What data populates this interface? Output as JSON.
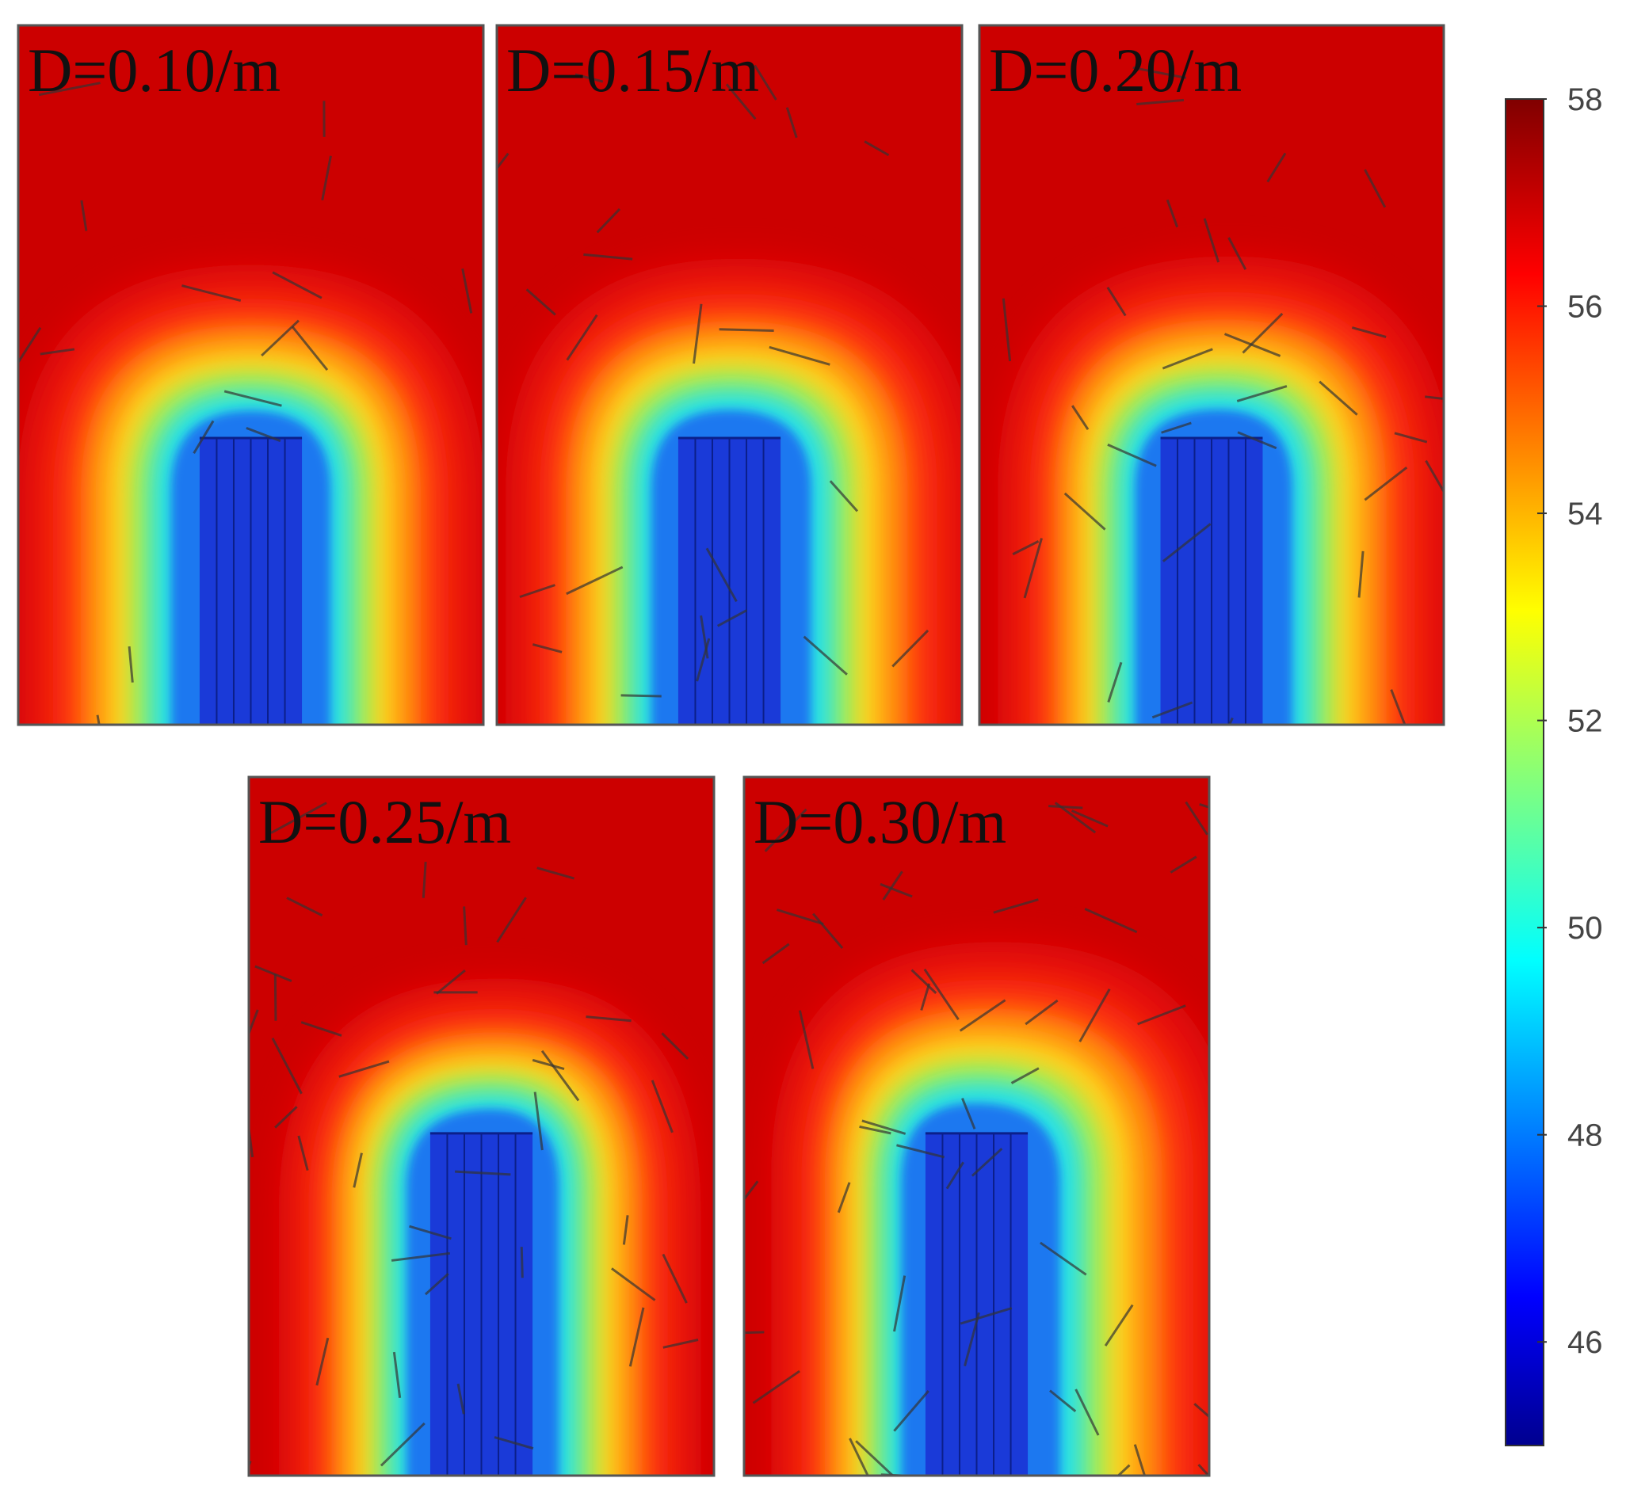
{
  "panels": [
    {
      "label": "D=0.10/m",
      "density": 0.1
    },
    {
      "label": "D=0.15/m",
      "density": 0.15
    },
    {
      "label": "D=0.20/m",
      "density": 0.2
    },
    {
      "label": "D=0.25/m",
      "density": 0.25
    },
    {
      "label": "D=0.30/m",
      "density": 0.3
    }
  ],
  "colorbar": {
    "min": 45,
    "max": 58,
    "ticks": [
      "58",
      "56",
      "54",
      "52",
      "50",
      "48",
      "46"
    ],
    "colormap": "jet"
  },
  "colors": {
    "background_field": "#cc0000",
    "cold_core": "#1a3ad8",
    "warm_ring": "#ffd21a",
    "fracture_line": "#333333"
  }
}
